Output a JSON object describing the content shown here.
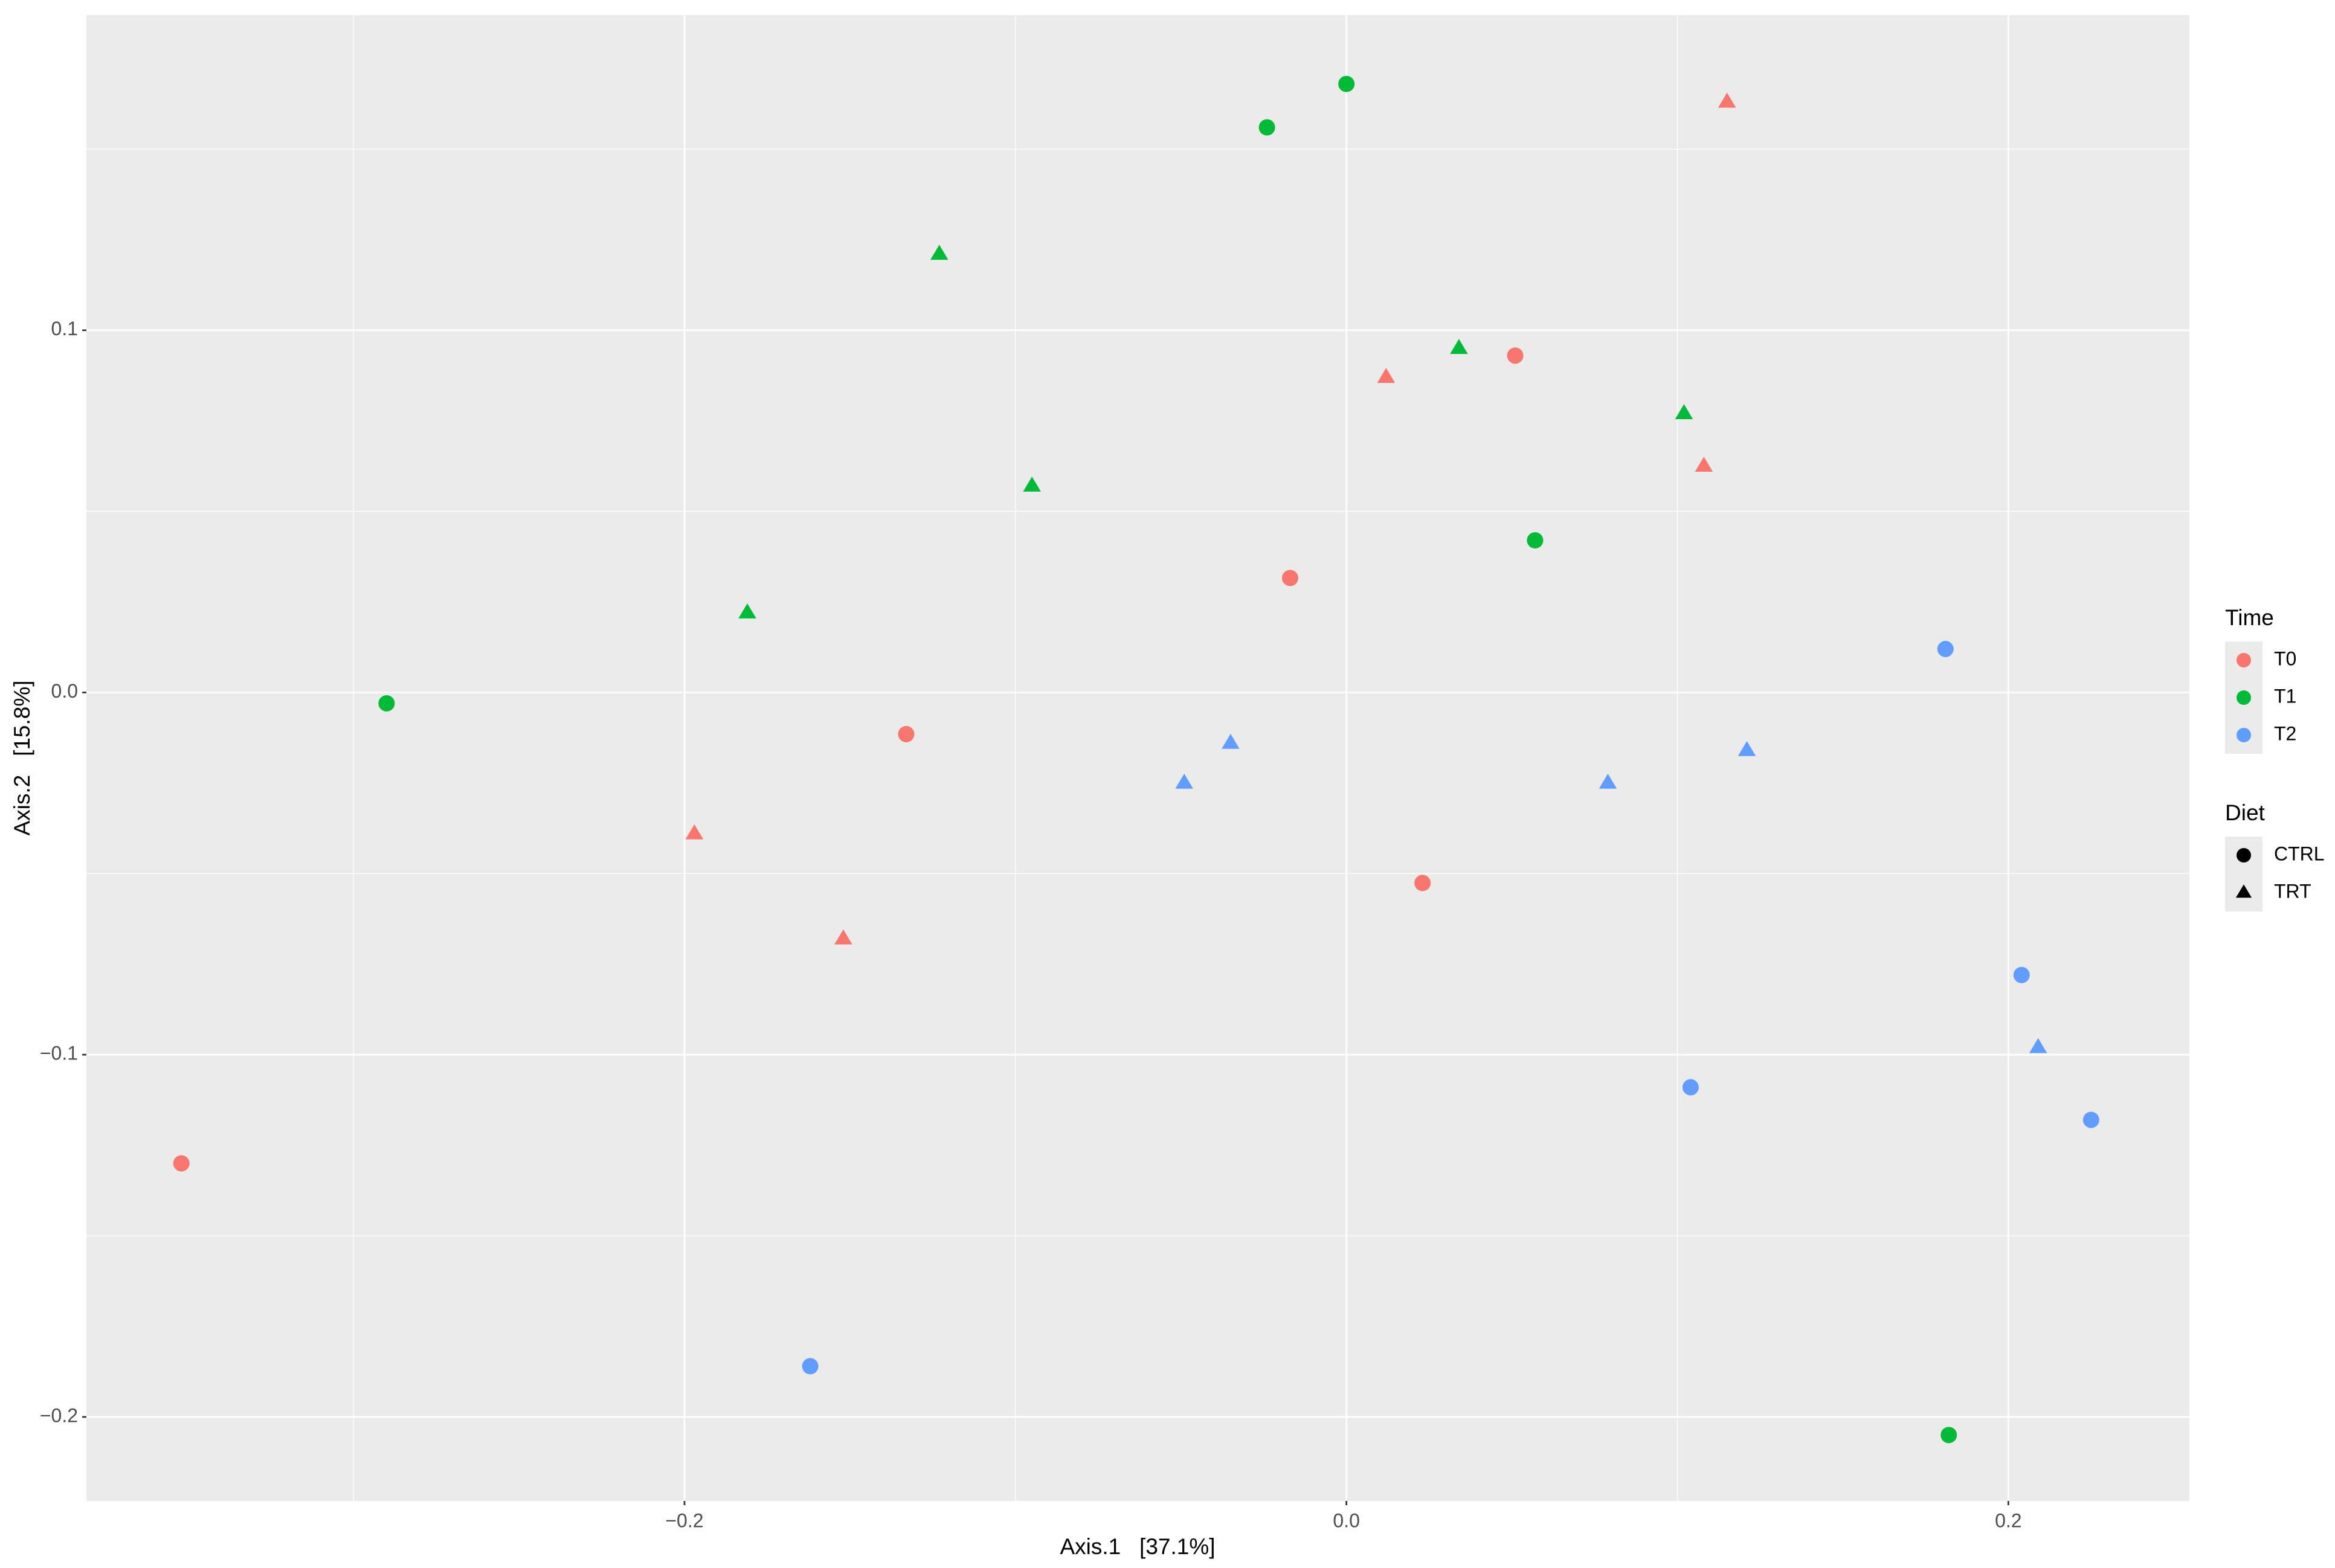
{
  "chart_data": {
    "type": "scatter",
    "x_label": "Axis.1   [37.1%]",
    "y_label": "Axis.2   [15.8%]",
    "xlim": [
      -0.3807,
      0.2547
    ],
    "ylim": [
      -0.2232,
      0.187
    ],
    "xticks": [
      {
        "value": -0.2,
        "label": "−0.2"
      },
      {
        "value": 0,
        "label": "0.0"
      },
      0.2
    ],
    "yticks": [
      {
        "value": -0.2,
        "label": "−0.2"
      },
      {
        "value": -0.1,
        "label": "−0.1"
      },
      {
        "value": 0,
        "label": "0.0"
      },
      0.1
    ],
    "x_minor_grid": [
      -0.3,
      -0.1,
      0.1
    ],
    "y_minor_grid": [
      -0.15,
      -0.05,
      0.05,
      0.15
    ],
    "grid": true,
    "legends": [
      {
        "title": "Time",
        "entries": [
          {
            "label": "T0",
            "color": "#F8766D"
          },
          {
            "label": "T1",
            "color": "#00BA38"
          },
          {
            "label": "T2",
            "color": "#619CFF"
          }
        ]
      },
      {
        "title": "Diet",
        "entries": [
          {
            "label": "CTRL",
            "shape": "circle"
          },
          {
            "label": "TRT",
            "shape": "triangle"
          }
        ]
      }
    ],
    "series": [
      {
        "time": "T0",
        "diet": "CTRL",
        "x": [
          -0.352,
          -0.133,
          -0.017,
          0.051,
          0.023
        ],
        "y": [
          -0.13,
          -0.0115,
          0.0316,
          0.093,
          -0.0526
        ]
      },
      {
        "time": "T0",
        "diet": "TRT",
        "x": [
          0.115,
          0.012,
          0.108,
          -0.197,
          -0.152
        ],
        "y": [
          0.163,
          0.087,
          0.0625,
          -0.039,
          -0.068
        ]
      },
      {
        "time": "T1",
        "diet": "CTRL",
        "x": [
          0.0,
          -0.024,
          -0.29,
          0.057,
          0.182
        ],
        "y": [
          0.168,
          0.156,
          -0.003,
          0.042,
          -0.205
        ]
      },
      {
        "time": "T1",
        "diet": "TRT",
        "x": [
          -0.123,
          0.034,
          0.102,
          -0.095,
          -0.181
        ],
        "y": [
          0.121,
          0.095,
          0.077,
          0.057,
          0.022
        ]
      },
      {
        "time": "T2",
        "diet": "CTRL",
        "x": [
          0.181,
          0.204,
          0.104,
          0.225,
          -0.162
        ],
        "y": [
          0.012,
          -0.078,
          -0.109,
          -0.118,
          -0.186
        ]
      },
      {
        "time": "T2",
        "diet": "TRT",
        "x": [
          -0.035,
          -0.049,
          0.079,
          0.121,
          0.209
        ],
        "y": [
          -0.014,
          -0.025,
          -0.025,
          -0.016,
          -0.098
        ]
      }
    ]
  }
}
